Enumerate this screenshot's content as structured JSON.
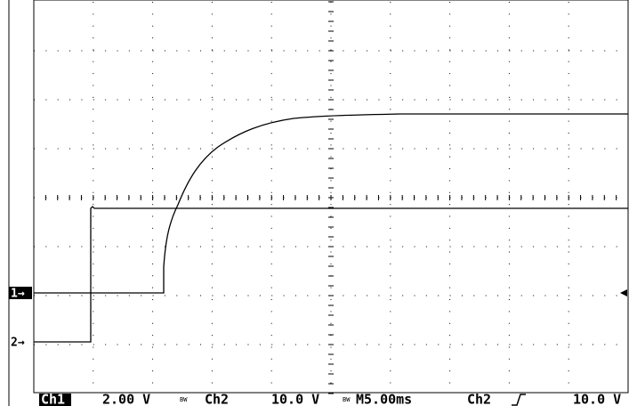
{
  "status_bar": {
    "ch1_label": "Ch1",
    "ch1_scale": "2.00 V",
    "ch1_bw": "BW",
    "ch2_label": "Ch2",
    "ch2_scale": "10.0 V",
    "ch2_bw": "BW",
    "timebase": "M5.00ms",
    "trigger_source": "Ch2",
    "trigger_level": "10.0 V"
  },
  "markers": {
    "ch1": "1→",
    "ch2": "2→"
  }
}
